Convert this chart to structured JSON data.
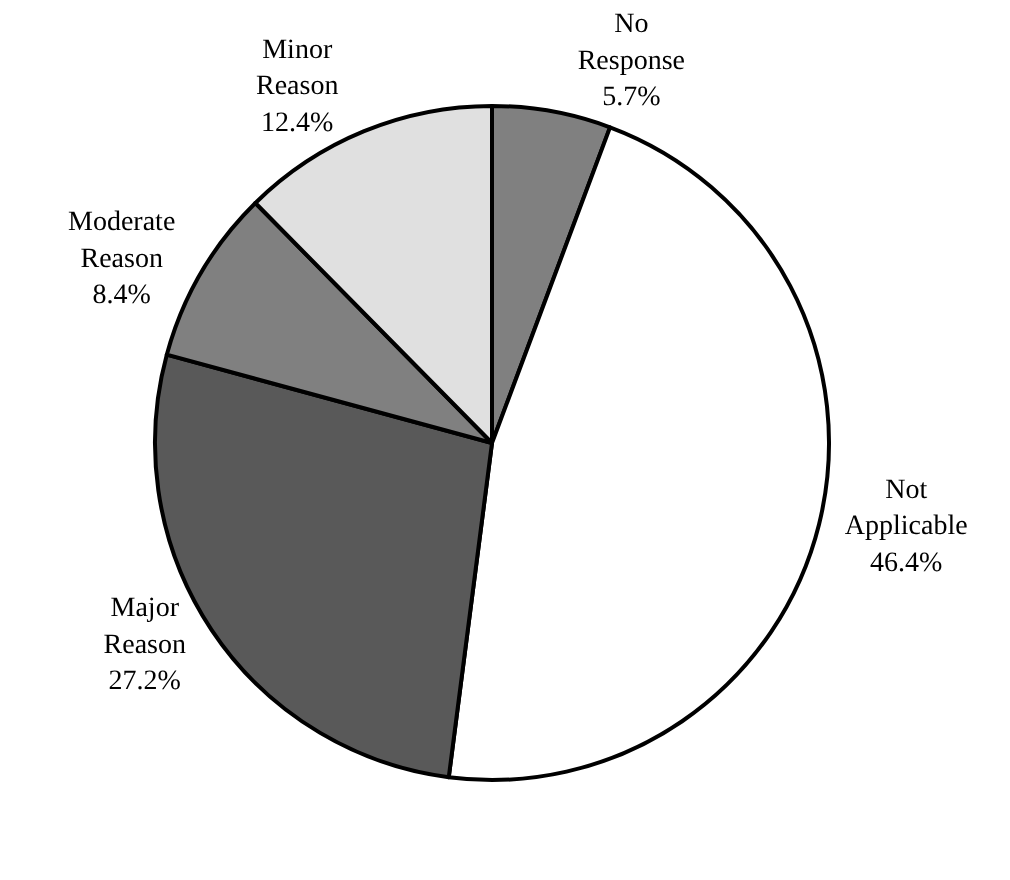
{
  "chart_data": {
    "type": "pie",
    "categories": [
      "No Response",
      "Not Applicable",
      "Major Reason",
      "Moderate Reason",
      "Minor Reason"
    ],
    "values": [
      5.7,
      46.4,
      27.2,
      8.4,
      12.4
    ],
    "value_labels": [
      "5.7%",
      "46.4%",
      "27.2%",
      "8.4%",
      "12.4%"
    ],
    "colors": [
      "#808080",
      "#ffffff",
      "#595959",
      "#808080",
      "#e0e0e0"
    ],
    "legend": false
  }
}
